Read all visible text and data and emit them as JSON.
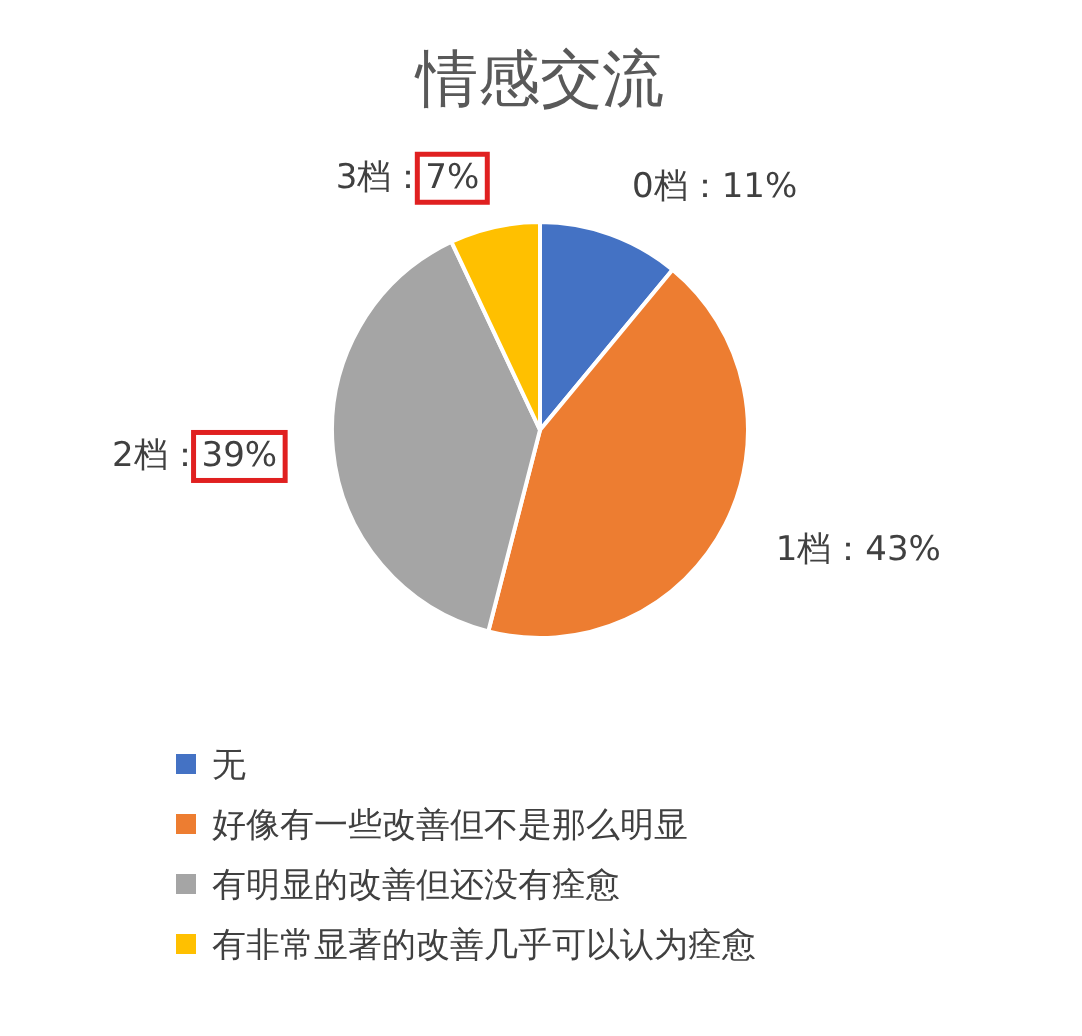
{
  "chart_data": {
    "type": "pie",
    "title": "情感交流",
    "categories": [
      "无",
      "好像有一些改善但不是那么明显",
      "有明显的改善但还没有痊愈",
      "有非常显著的改善几乎可以认为痊愈"
    ],
    "values": [
      11,
      43,
      39,
      7
    ],
    "colors": [
      "#4472c4",
      "#ed7d31",
      "#a5a5a5",
      "#ffc000"
    ],
    "value_labels": [
      "0档：11%",
      "1档：43%",
      "2档：39%",
      "3档：7%"
    ],
    "legend": "bottom"
  }
}
